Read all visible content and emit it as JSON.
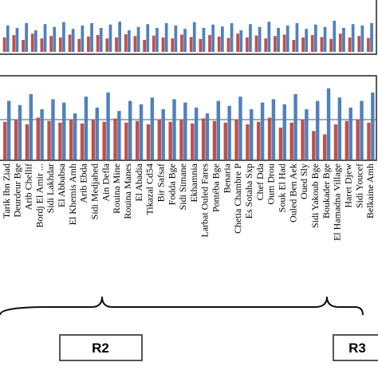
{
  "chart_data": [
    {
      "type": "bar",
      "ylim": [
        0,
        100
      ],
      "series": [
        {
          "color": "#4f81bd",
          "values": [
            55,
            50,
            60,
            45,
            58,
            52,
            62,
            48,
            55,
            60,
            50,
            57,
            63,
            45,
            52,
            58,
            50,
            60,
            55,
            48,
            62,
            50,
            57,
            53,
            60,
            45,
            58,
            52,
            63,
            50,
            55,
            60,
            48,
            57,
            52,
            65,
            50,
            58,
            55,
            60
          ]
        },
        {
          "color": "#c0504d",
          "values": [
            30,
            35,
            25,
            38,
            28,
            33,
            30,
            36,
            27,
            32,
            35,
            28,
            30,
            37,
            33,
            25,
            34,
            30,
            28,
            36,
            31,
            27,
            35,
            32,
            29,
            38,
            30,
            34,
            28,
            33,
            36,
            25,
            30,
            35,
            31,
            27,
            38,
            30,
            33,
            29
          ]
        }
      ]
    },
    {
      "type": "bar",
      "ylim": [
        0,
        100
      ],
      "categories": [
        "Tarik Ibn Ziad",
        "Deurdeur Bge",
        "Arib Chellif",
        "Bordj El Amir ...",
        "Sidi Lakhdar",
        "El Abbabsa",
        "El Khemis Amh",
        "Arib Ebda",
        "Sidi Medjahed",
        "Ain Defla",
        "Rouina Mine",
        "Rouina Manes",
        "El Abadia",
        "Tikazal Cd54",
        "Bir Safsaf",
        "Fodda Bge",
        "Sidi Simane",
        "Ekhamnia",
        "Larbat Ouled Fares",
        "Pontéba Bge",
        "Benaria",
        "Chetia Chambre P",
        "Es Sotaha Sxp",
        "Chef Dda",
        "Oum Drou",
        "Souk El Had",
        "Ouled Ben Aek",
        "Oued Sly",
        "Sidi Yakoub Bge",
        "Boukader Bge",
        "El Hamadna Village",
        "Haret Djew",
        "Sidi Youcef",
        "Belkaine Amh"
      ],
      "series": [
        {
          "color": "#4f81bd",
          "values": [
            70,
            65,
            78,
            60,
            72,
            68,
            55,
            75,
            62,
            80,
            58,
            70,
            66,
            74,
            60,
            72,
            68,
            62,
            55,
            70,
            64,
            75,
            60,
            68,
            72,
            66,
            78,
            60,
            70,
            85,
            74,
            62,
            70,
            80
          ]
        },
        {
          "color": "#c0504d",
          "values": [
            45,
            48,
            42,
            50,
            46,
            44,
            48,
            43,
            47,
            45,
            49,
            44,
            46,
            42,
            48,
            45,
            47,
            43,
            49,
            46,
            44,
            48,
            42,
            45,
            50,
            38,
            44,
            47,
            34,
            30,
            42,
            46,
            48,
            44
          ]
        }
      ]
    }
  ],
  "region_labels": [
    "R2",
    "R3"
  ]
}
